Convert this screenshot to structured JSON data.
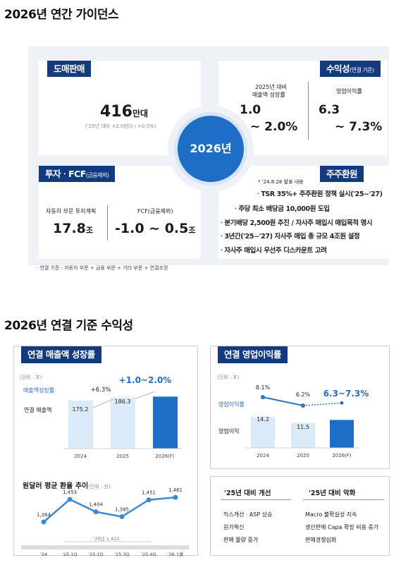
{
  "section1": {
    "title": "2026년 연간 가이던스",
    "center_year": "2026년",
    "wholesale": {
      "tag": "도매판매",
      "value": "416",
      "unit": "만대",
      "note": "('25년 대비 +2.0만대 / +0.5%)"
    },
    "profitability": {
      "tag": "수익성",
      "tag_suffix": "(연결 기준)",
      "revenue_label_1": "2025년 대비",
      "revenue_label_2": "매출액 성장률",
      "revenue_low": "1.0",
      "revenue_high": "~ 2.0%",
      "op_label": "영업이익률",
      "op_low": "6.3",
      "op_high": "~ 7.3%"
    },
    "invest": {
      "tag": "투자ㆍFCF",
      "tag_suffix": "(금융제외)",
      "auto_label": "자동차 부문 투자계획",
      "auto_value": "17.8",
      "auto_unit": "조",
      "fcf_label": "FCF(금융제외)",
      "fcf_value": "-1.0 ~ 0.5",
      "fcf_unit": "조"
    },
    "shareholder": {
      "tag": "주주환원",
      "note": "* '24.8.28 발표 내용",
      "items": [
        "ㆍTSR 35%+ 주주환원 정책 실시('25~'27)",
        "ㆍ주당 최소 배당금 10,000원 도입",
        "ㆍ분기배당 2,500원 추진 / 자사주 매입시 매입목적 명시",
        "ㆍ3년간('25~'27) 자사주 매입 총 규모 4조원 설정",
        "ㆍ자사주 매입시 우선주 디스카운트 고려"
      ]
    },
    "footnote": "ㆍ연결 기준 : 자동차 부문 + 금융 부문 + 기타 부문 + 연결조정"
  },
  "section2": {
    "title": "2026년 연결 기준 수익성",
    "left": {
      "tag": "연결 매출액 성장률",
      "unit": "(단위 : 조)",
      "legend_rate": "매출액성장률",
      "legend_sales": "연결 매출액",
      "growth_label": "+6.3%",
      "guidance": "+1.0~2.0%",
      "bars": [
        {
          "year": "2024",
          "value": 175.2,
          "label": "175.2"
        },
        {
          "year": "2025",
          "value": 186.3,
          "label": "186.3"
        },
        {
          "year": "2026(F)",
          "value": 189.0,
          "label": ""
        }
      ],
      "fx": {
        "title": "원달러 평균 환율 추이",
        "unit": "(단위 : 원)",
        "bracket_label": "'25년 1,422",
        "points": [
          {
            "x": "'24",
            "y": 1364,
            "label": "1,364"
          },
          {
            "x": "'25.1Q",
            "y": 1453,
            "label": "1,453"
          },
          {
            "x": "'25.2Q",
            "y": 1404,
            "label": "1,404"
          },
          {
            "x": "'25.3Q",
            "y": 1385,
            "label": "1,385"
          },
          {
            "x": "'25.4Q",
            "y": 1451,
            "label": "1,451"
          },
          {
            "x": "'26.1월",
            "y": 1461,
            "label": "1,461"
          }
        ]
      }
    },
    "right": {
      "tag": "연결 영업이익률",
      "unit": "(단위 : 조)",
      "legend_rate": "영업이익률",
      "legend_op": "영업이익",
      "guidance": "6.3~7.3%",
      "margins": [
        {
          "year": "2024",
          "value": 8.1,
          "label": "8.1%"
        },
        {
          "year": "2025",
          "value": 6.2,
          "label": "6.2%"
        },
        {
          "year": "2026(F)",
          "value": 6.8,
          "label": ""
        }
      ],
      "bars": [
        {
          "year": "2024",
          "value": 14.2,
          "label": "14.2"
        },
        {
          "year": "2025",
          "value": 11.5,
          "label": "11.5"
        },
        {
          "year": "2026(F)",
          "value": 12.8,
          "label": ""
        }
      ],
      "improve_title": "'25년 대비 개선",
      "improve_items": [
        "믹스개선ㆍASP 상승",
        "원가혁신",
        "판매 물량 증가"
      ],
      "worse_title": "'25년 대비 악화",
      "worse_items": [
        "Macro 불확실성 지속",
        "생산판매 Capa 확장 비용 증가",
        "판매경쟁심화"
      ]
    }
  },
  "colors": {
    "navy": "#123a7e",
    "blue": "#2a6bbf",
    "light_blue": "#dbeaf8",
    "accent_bar": "#1f6ec6"
  }
}
